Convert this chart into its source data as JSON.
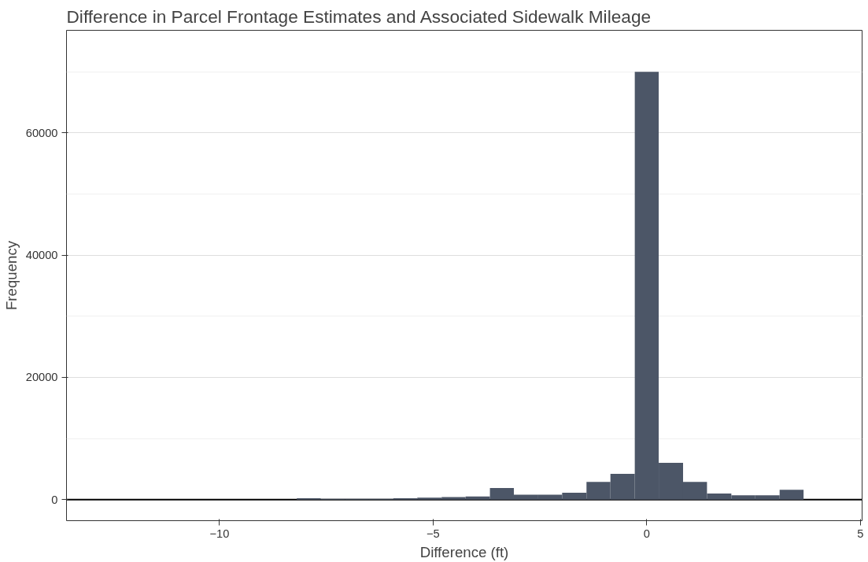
{
  "chart_data": {
    "type": "histogram",
    "title": "Difference in Parcel Frontage Estimates and Associated Sidewalk Mileage",
    "xlabel": "Difference (ft)",
    "ylabel": "Frequency",
    "bins": [
      -8.19,
      -7.63,
      -7.06,
      -6.5,
      -5.93,
      -5.37,
      -4.8,
      -4.24,
      -3.67,
      -3.11,
      -2.54,
      -1.98,
      -1.41,
      -0.85,
      -0.28,
      0.28,
      0.85,
      1.41,
      1.98,
      2.54,
      3.11,
      3.67
    ],
    "values": [
      200,
      100,
      100,
      100,
      200,
      300,
      400,
      500,
      1900,
      800,
      800,
      1100,
      2900,
      4200,
      70000,
      6000,
      2900,
      1000,
      700,
      700,
      1600
    ],
    "color": "#4c5667",
    "xlim": [
      -13.58,
      5.04
    ],
    "ylim": [
      -3460,
      76800
    ],
    "xticks": [
      -10,
      -5,
      0,
      5
    ],
    "yticks": [
      0,
      20000,
      40000,
      60000
    ],
    "grid": "y",
    "ref_lines": [
      {
        "axis": "y",
        "value": 0,
        "color": "#000000"
      }
    ]
  }
}
